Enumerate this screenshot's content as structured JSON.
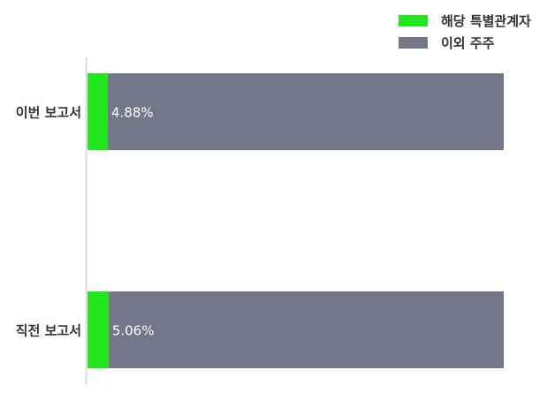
{
  "chart_data": {
    "type": "bar",
    "orientation": "horizontal",
    "stacked": true,
    "categories": [
      "이번 보고서",
      "직전 보고서"
    ],
    "series": [
      {
        "name": "해당 특별관계자",
        "values": [
          4.88,
          5.06
        ],
        "color": "#22e61e"
      },
      {
        "name": "이외 주주",
        "values": [
          95.12,
          94.94
        ],
        "color": "#737789"
      }
    ],
    "data_labels": [
      "4.88%",
      "5.06%"
    ],
    "xlim": [
      0,
      100
    ],
    "grid": false,
    "legend_position": "top-right"
  }
}
